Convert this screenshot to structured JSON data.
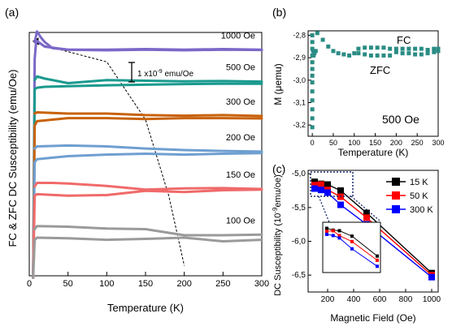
{
  "chart_data": [
    {
      "panel": "(a)",
      "type": "line",
      "title": "",
      "xlabel": "Temperature (K)",
      "ylabel": "FC & ZFC DC Susceptibility (emu/Oe)",
      "xlim": [
        0,
        300
      ],
      "xticks": [
        0,
        50,
        100,
        150,
        200,
        250,
        300
      ],
      "scale_bar_label": "1 x10",
      "scale_bar_exp": "-9",
      "scale_bar_unit": " emu/Oe",
      "grid": false,
      "series": [
        {
          "name": "1000 Oe",
          "color": "#7b68c8",
          "fc": [
            [
              7,
              7.55
            ],
            [
              10,
              7.9
            ],
            [
              15,
              7.7
            ],
            [
              20,
              7.55
            ],
            [
              30,
              7.35
            ],
            [
              50,
              7.3
            ],
            [
              100,
              7.3
            ],
            [
              150,
              7.32
            ],
            [
              200,
              7.3
            ],
            [
              250,
              7.32
            ],
            [
              300,
              7.3
            ]
          ],
          "zfc": [
            [
              5,
              -0.2
            ],
            [
              7,
              7.0
            ],
            [
              9,
              7.6
            ],
            [
              12,
              7.55
            ],
            [
              20,
              7.4
            ],
            [
              50,
              7.3
            ],
            [
              100,
              7.28
            ],
            [
              150,
              7.3
            ],
            [
              200,
              7.28
            ],
            [
              250,
              7.3
            ],
            [
              300,
              7.29
            ]
          ]
        },
        {
          "name": "500 Oe",
          "color": "#1a9a8e",
          "fc": [
            [
              7,
              6.3
            ],
            [
              10,
              6.42
            ],
            [
              20,
              6.35
            ],
            [
              50,
              6.2
            ],
            [
              100,
              6.3
            ],
            [
              150,
              6.28
            ],
            [
              200,
              6.26
            ],
            [
              250,
              6.27
            ],
            [
              300,
              6.25
            ]
          ],
          "zfc": [
            [
              5,
              -0.2
            ],
            [
              7,
              6.0
            ],
            [
              10,
              6.05
            ],
            [
              20,
              6.08
            ],
            [
              50,
              6.1
            ],
            [
              100,
              6.13
            ],
            [
              150,
              6.15
            ],
            [
              200,
              6.17
            ],
            [
              250,
              6.18
            ],
            [
              300,
              6.18
            ]
          ]
        },
        {
          "name": "300 Oe",
          "color": "#c8620a",
          "fc": [
            [
              7,
              5.2
            ],
            [
              10,
              5.24
            ],
            [
              50,
              5.2
            ],
            [
              100,
              5.2
            ],
            [
              150,
              5.15
            ],
            [
              200,
              5.13
            ],
            [
              250,
              5.15
            ],
            [
              300,
              5.12
            ]
          ],
          "zfc": [
            [
              5,
              -0.2
            ],
            [
              7,
              4.8
            ],
            [
              10,
              4.95
            ],
            [
              50,
              5.05
            ],
            [
              100,
              5.05
            ],
            [
              150,
              5.02
            ],
            [
              200,
              5.05
            ],
            [
              250,
              5.05
            ],
            [
              300,
              5.04
            ]
          ]
        },
        {
          "name": "200 Oe",
          "color": "#6f9fd0",
          "fc": [
            [
              7,
              4.05
            ],
            [
              10,
              4.12
            ],
            [
              50,
              4.15
            ],
            [
              100,
              4.12
            ],
            [
              150,
              4.05
            ],
            [
              200,
              4.0
            ],
            [
              250,
              3.97
            ],
            [
              300,
              3.95
            ]
          ],
          "zfc": [
            [
              5,
              -0.2
            ],
            [
              7,
              3.6
            ],
            [
              10,
              3.7
            ],
            [
              50,
              3.8
            ],
            [
              100,
              3.85
            ],
            [
              150,
              3.88
            ],
            [
              200,
              3.85
            ],
            [
              250,
              3.88
            ],
            [
              300,
              3.9
            ]
          ]
        },
        {
          "name": "150 Oe",
          "color": "#f06a6a",
          "fc": [
            [
              7,
              2.8
            ],
            [
              10,
              2.92
            ],
            [
              30,
              2.92
            ],
            [
              50,
              2.9
            ],
            [
              100,
              2.82
            ],
            [
              150,
              2.7
            ],
            [
              200,
              2.74
            ],
            [
              250,
              2.75
            ],
            [
              300,
              2.72
            ]
          ],
          "zfc": [
            [
              5,
              -0.2
            ],
            [
              7,
              2.5
            ],
            [
              10,
              2.55
            ],
            [
              50,
              2.5
            ],
            [
              100,
              2.52
            ],
            [
              150,
              2.66
            ],
            [
              200,
              2.62
            ],
            [
              250,
              2.68
            ],
            [
              300,
              2.7
            ]
          ]
        },
        {
          "name": "100 Oe",
          "color": "#9a9a9a",
          "fc": [
            [
              7,
              1.4
            ],
            [
              10,
              1.5
            ],
            [
              50,
              1.48
            ],
            [
              100,
              1.42
            ],
            [
              150,
              1.4
            ],
            [
              200,
              1.2
            ],
            [
              250,
              1.2
            ],
            [
              300,
              1.22
            ]
          ],
          "zfc": [
            [
              5,
              -0.2
            ],
            [
              7,
              1.05
            ],
            [
              10,
              1.12
            ],
            [
              50,
              1.1
            ],
            [
              100,
              1.05
            ],
            [
              150,
              1.08
            ],
            [
              200,
              1.12
            ],
            [
              250,
              1.0
            ],
            [
              300,
              1.05
            ]
          ]
        }
      ],
      "dashed_guide": [
        [
          10,
          7.5
        ],
        [
          100,
          6.9
        ],
        [
          150,
          5.0
        ],
        [
          180,
          2.5
        ],
        [
          200,
          0.2
        ]
      ]
    },
    {
      "panel": "(b)",
      "type": "scatter",
      "title": "",
      "xlabel": "Temperature (K)",
      "ylabel": "M (μemu)",
      "xlim": [
        -10,
        300
      ],
      "ylim": [
        -3.25,
        -2.78
      ],
      "xticks": [
        0,
        50,
        100,
        150,
        200,
        250,
        300
      ],
      "yticks": [
        -2.8,
        -2.9,
        -3.0,
        -3.1,
        -3.2
      ],
      "ytick_labels": [
        "-2,8",
        "-2,9",
        "-3,0",
        "-3,1",
        "-3,2"
      ],
      "annotations": [
        "FC",
        "ZFC",
        "500 Oe"
      ],
      "color": "#2a8c84",
      "points": [
        [
          0,
          -2.8
        ],
        [
          0,
          -2.83
        ],
        [
          0,
          -2.86
        ],
        [
          0,
          -2.89
        ],
        [
          0,
          -2.92
        ],
        [
          0,
          -2.95
        ],
        [
          0,
          -2.98
        ],
        [
          0,
          -3.01
        ],
        [
          0,
          -3.05
        ],
        [
          0,
          -3.09
        ],
        [
          0,
          -3.13
        ],
        [
          0,
          -3.17
        ],
        [
          0,
          -3.21
        ],
        [
          2,
          -2.87
        ],
        [
          3,
          -2.89
        ],
        [
          5,
          -2.88
        ],
        [
          8,
          -2.87
        ],
        [
          12,
          -2.79
        ],
        [
          25,
          -2.82
        ],
        [
          38,
          -2.85
        ],
        [
          50,
          -2.87
        ],
        [
          62,
          -2.88
        ],
        [
          75,
          -2.885
        ],
        [
          88,
          -2.89
        ],
        [
          100,
          -2.88
        ],
        [
          110,
          -2.86
        ],
        [
          125,
          -2.855
        ],
        [
          140,
          -2.855
        ],
        [
          155,
          -2.855
        ],
        [
          170,
          -2.855
        ],
        [
          185,
          -2.86
        ],
        [
          200,
          -2.86
        ],
        [
          215,
          -2.86
        ],
        [
          230,
          -2.86
        ],
        [
          245,
          -2.86
        ],
        [
          260,
          -2.86
        ],
        [
          275,
          -2.865
        ],
        [
          290,
          -2.86
        ],
        [
          300,
          -2.86
        ],
        [
          110,
          -2.88
        ],
        [
          125,
          -2.885
        ],
        [
          140,
          -2.89
        ],
        [
          155,
          -2.89
        ],
        [
          170,
          -2.89
        ],
        [
          185,
          -2.89
        ],
        [
          200,
          -2.875
        ],
        [
          215,
          -2.88
        ],
        [
          230,
          -2.88
        ],
        [
          245,
          -2.885
        ],
        [
          260,
          -2.885
        ],
        [
          275,
          -2.88
        ],
        [
          290,
          -2.875
        ],
        [
          300,
          -2.87
        ]
      ]
    },
    {
      "panel": "(c)",
      "type": "line",
      "title": "",
      "xlabel": "Magnetic Field (Oe)",
      "ylabel": "DC Susceptibility (10",
      "ylabel_exp": "-9",
      "ylabel_unit": "emu/oe)",
      "xlim": [
        50,
        1050
      ],
      "ylim": [
        -6.75,
        -4.95
      ],
      "xticks": [
        200,
        400,
        600,
        800,
        1000
      ],
      "yticks": [
        -5.0,
        -5.5,
        -6.0,
        -6.5
      ],
      "ytick_labels": [
        "-5,0",
        "-5,5",
        "-6,0",
        "-6,5"
      ],
      "x": [
        100,
        150,
        200,
        300,
        500,
        1000
      ],
      "series": [
        {
          "name": "15 K",
          "color": "#000000",
          "values": [
            -5.12,
            -5.15,
            -5.16,
            -5.25,
            -5.58,
            -6.47
          ]
        },
        {
          "name": "50 K",
          "color": "#ff0000",
          "values": [
            -5.17,
            -5.16,
            -5.24,
            -5.34,
            -5.65,
            -6.5
          ]
        },
        {
          "name": "300 K",
          "color": "#0000ff",
          "values": [
            -5.22,
            -5.24,
            -5.28,
            -5.46,
            -5.75,
            -6.53
          ]
        }
      ],
      "legend": "top-right"
    }
  ]
}
